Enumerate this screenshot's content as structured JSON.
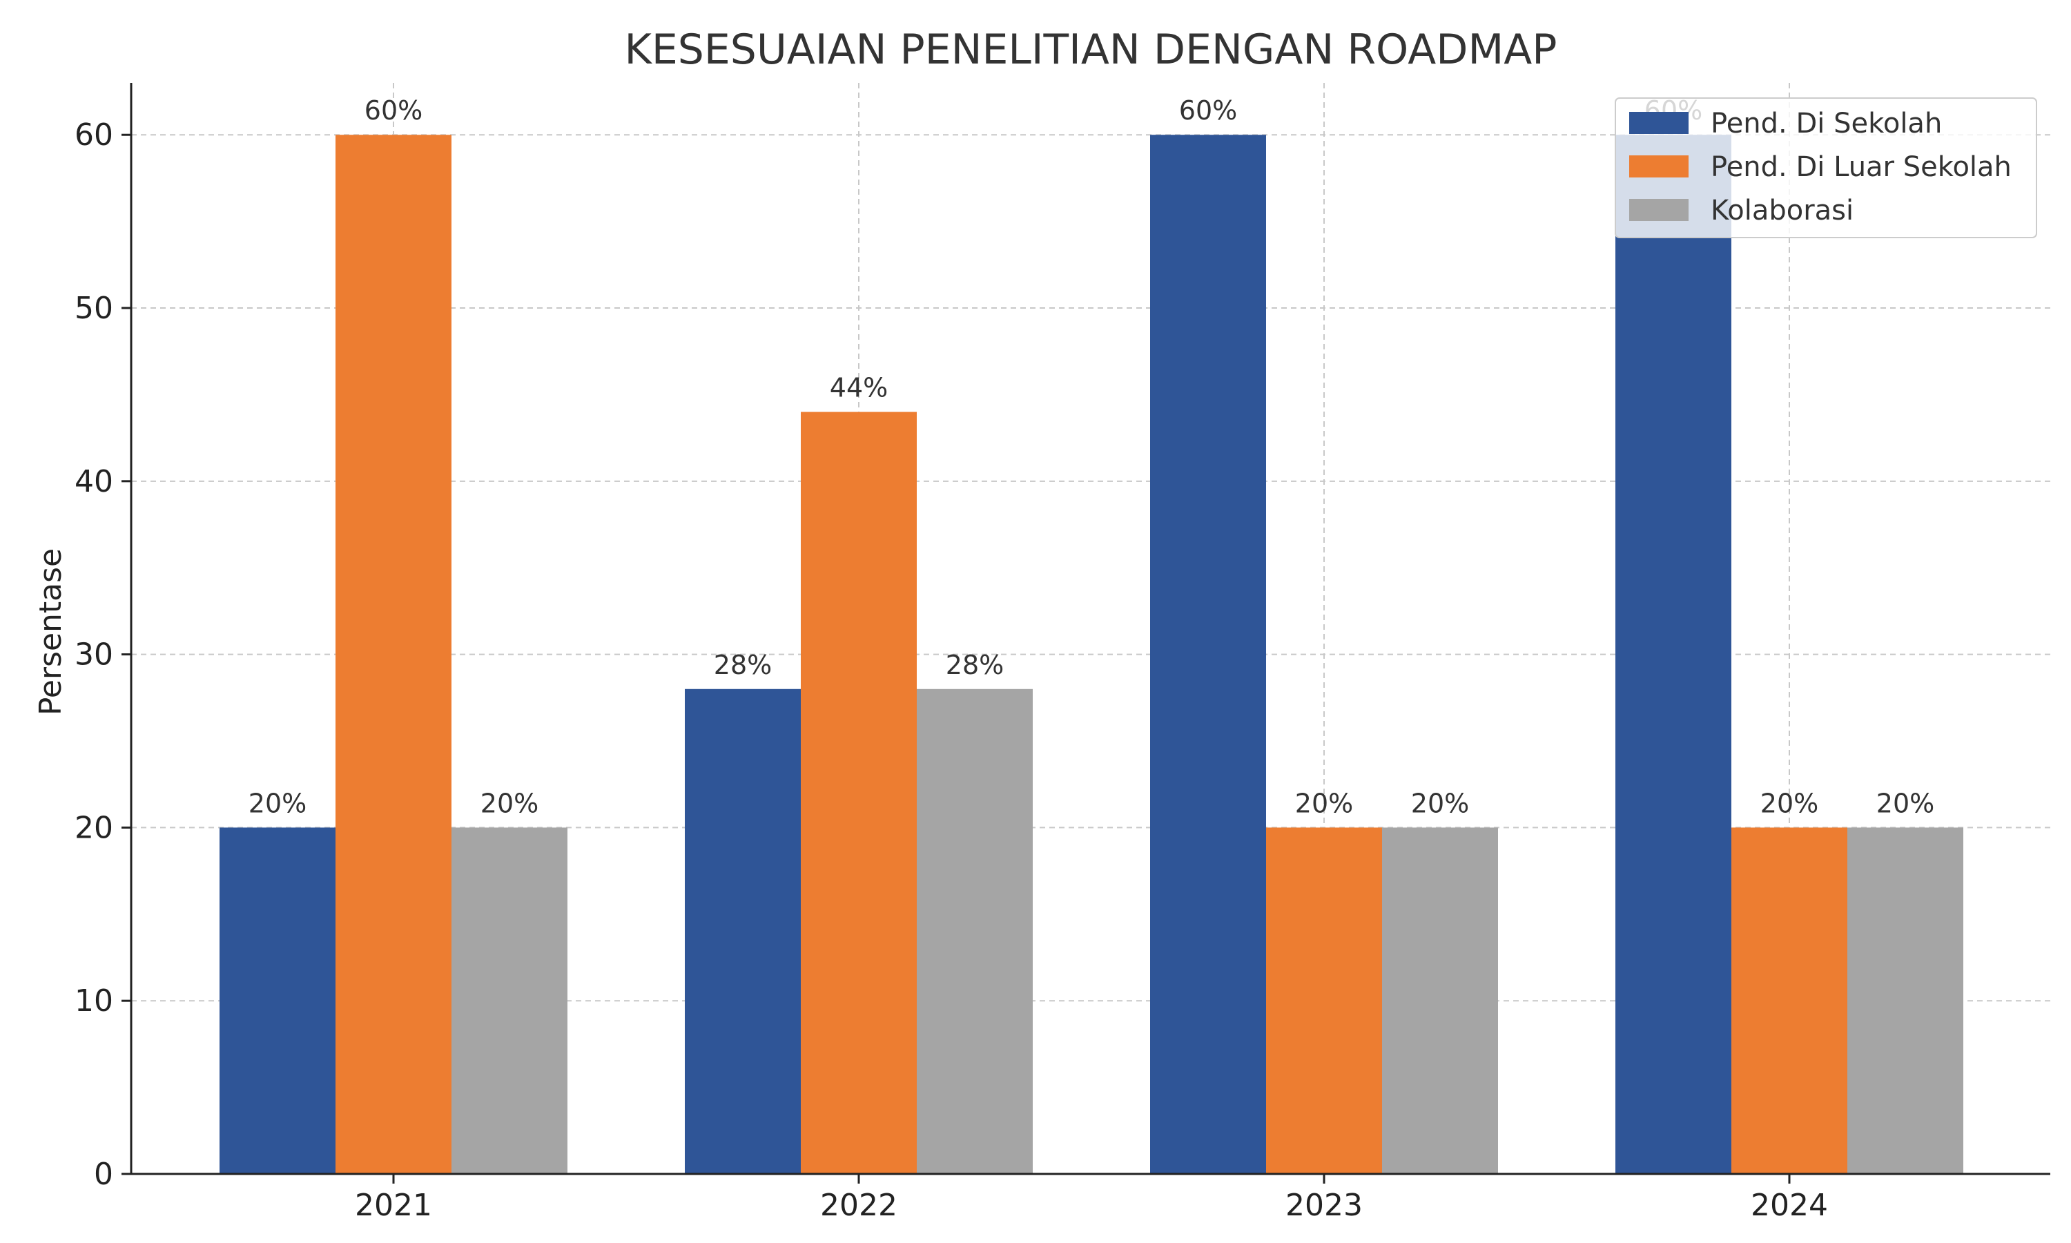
{
  "chart_data": {
    "type": "bar",
    "title": "KESESUAIAN PENELITIAN DENGAN ROADMAP",
    "xlabel": "",
    "ylabel": "Persentase",
    "categories": [
      "2021",
      "2022",
      "2023",
      "2024"
    ],
    "series": [
      {
        "name": "Pend. Di Sekolah",
        "color": "#2f5597",
        "values": [
          20,
          28,
          60,
          60
        ],
        "labels": [
          "20%",
          "28%",
          "60%",
          "60%"
        ]
      },
      {
        "name": "Pend. Di Luar Sekolah",
        "color": "#ed7d31",
        "values": [
          60,
          44,
          20,
          20
        ],
        "labels": [
          "60%",
          "44%",
          "20%",
          "20%"
        ]
      },
      {
        "name": "Kolaborasi",
        "color": "#a5a5a5",
        "values": [
          20,
          28,
          20,
          20
        ],
        "labels": [
          "20%",
          "28%",
          "20%",
          "20%"
        ]
      }
    ],
    "ylim": [
      0,
      63
    ],
    "yticks": [
      0,
      10,
      20,
      30,
      40,
      50,
      60
    ],
    "ytick_labels": [
      "0",
      "10",
      "20",
      "30",
      "40",
      "50",
      "60"
    ],
    "grid": true,
    "legend": "top-right"
  }
}
